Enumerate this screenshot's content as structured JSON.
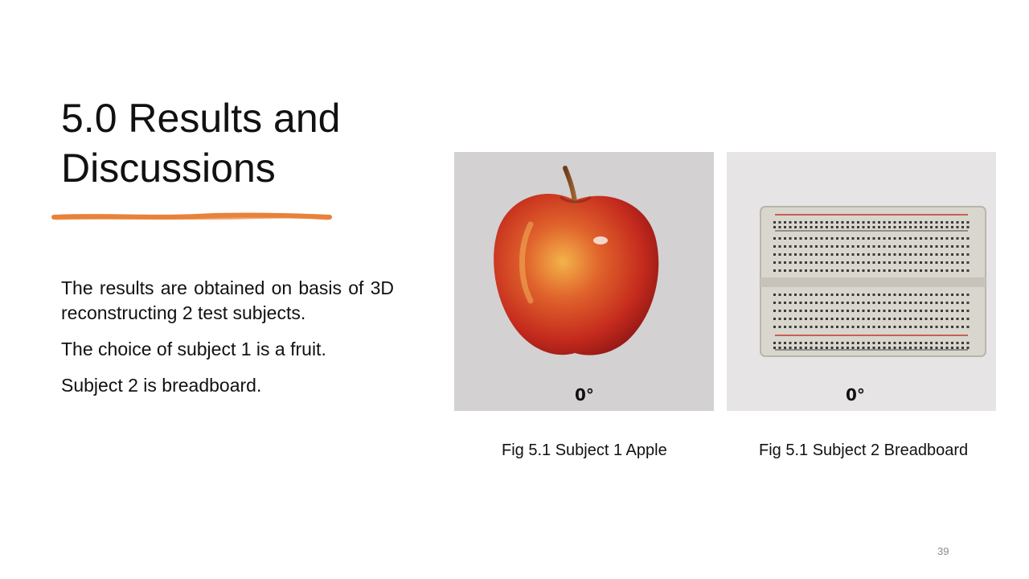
{
  "slide": {
    "title": "5.0 Results and Discussions",
    "accent_color": "#e8823a",
    "paragraphs": [
      "The results are obtained on basis of 3D reconstructing 2 test subjects.",
      "The choice of subject 1 is a fruit.",
      "Subject 2 is breadboard."
    ],
    "figures": [
      {
        "overlay_label": "0°",
        "caption": "Fig 5.1 Subject 1 Apple",
        "icon": "apple-image"
      },
      {
        "overlay_label": "0°",
        "caption": "Fig 5.1 Subject 2 Breadboard",
        "icon": "breadboard-image"
      }
    ],
    "page_number": "39"
  }
}
